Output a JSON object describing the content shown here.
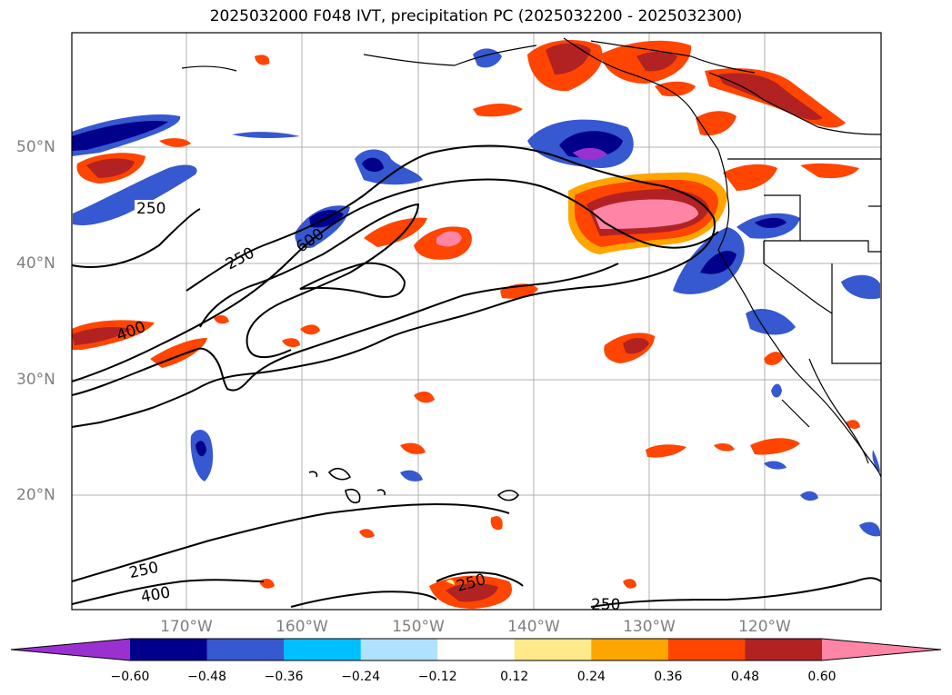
{
  "title": "2025032000 F048 IVT, precipitation PC (2025032200 - 2025032300)",
  "map": {
    "lat_labels": [
      "50°N",
      "40°N",
      "30°N",
      "20°N"
    ],
    "lon_labels": [
      "170°W",
      "160°W",
      "150°W",
      "140°W",
      "130°W",
      "120°W"
    ],
    "ivt_contour_labels": [
      "250",
      "600",
      "250",
      "400",
      "250",
      "400",
      "250",
      "250"
    ]
  },
  "colorbar": {
    "ticks": [
      "−0.60",
      "−0.48",
      "−0.36",
      "−0.24",
      "−0.12",
      "0.12",
      "0.24",
      "0.36",
      "0.48",
      "0.60"
    ],
    "colors": [
      "#9b30d0",
      "#00008b",
      "#3658d0",
      "#00bfff",
      "#b0e2ff",
      "#ffffff",
      "#ffe98a",
      "#ffa500",
      "#ff4500",
      "#b22222",
      "#ff85a7"
    ]
  }
}
